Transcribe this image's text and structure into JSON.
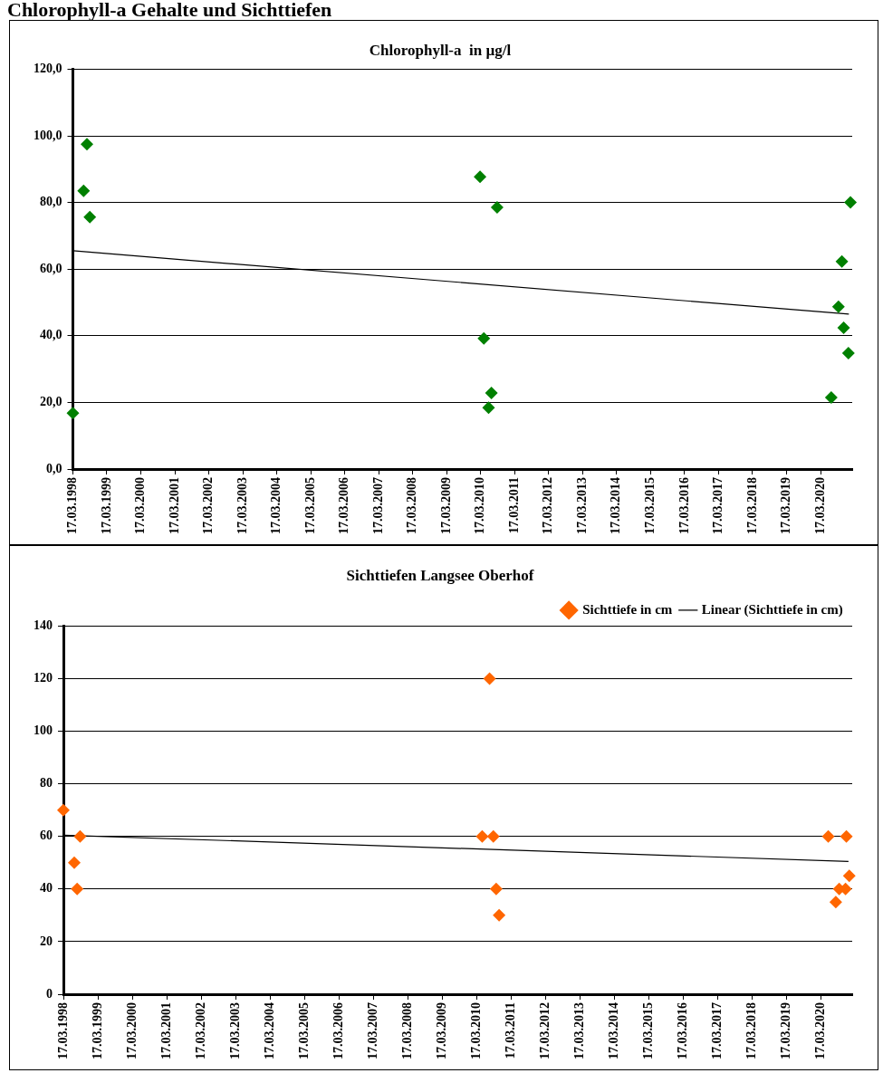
{
  "chart_data": [
    {
      "type": "scatter",
      "title": "Chlorophyll-a  in µg/l",
      "annotations": [
        "Chlorophyll-a Gehalte und Sichttiefen"
      ],
      "series": [
        {
          "type": "scatter",
          "color": "#008000",
          "marker": "diamond",
          "x": [
            "1998-03-17",
            "1998-07-10",
            "1998-08-15",
            "1998-09-15",
            "2010-03-10",
            "2010-04-20",
            "2010-06-10",
            "2010-07-10",
            "2010-09-10",
            "2020-07-10",
            "2020-09-25",
            "2020-11-01",
            "2020-11-20",
            "2021-01-10",
            "2021-02-01"
          ],
          "values": [
            16.8,
            83.5,
            97.5,
            75.6,
            87.7,
            39.2,
            18.4,
            22.8,
            78.5,
            21.5,
            48.7,
            62.3,
            42.4,
            34.8,
            80
          ]
        },
        {
          "type": "line",
          "color": "#000000",
          "marker": "none",
          "x": [
            "1998-03-17",
            "2021-01-15"
          ],
          "values": [
            65.5,
            46.5
          ]
        }
      ],
      "xlim": [
        "1998-03-17",
        "2021-02-20"
      ],
      "xticks": [
        {
          "value": "1998-03-17",
          "label": "17.03.1998"
        },
        {
          "value": "1999-03-17",
          "label": "17.03.1999"
        },
        {
          "value": "2000-03-17",
          "label": "17.03.2000"
        },
        {
          "value": "2001-03-17",
          "label": "17.03.2001"
        },
        {
          "value": "2002-03-17",
          "label": "17.03.2002"
        },
        {
          "value": "2003-03-17",
          "label": "17.03.2003"
        },
        {
          "value": "2004-03-17",
          "label": "17.03.2004"
        },
        {
          "value": "2005-03-17",
          "label": "17.03.2005"
        },
        {
          "value": "2006-03-17",
          "label": "17.03.2006"
        },
        {
          "value": "2007-03-17",
          "label": "17.03.2007"
        },
        {
          "value": "2008-03-17",
          "label": "17.03.2008"
        },
        {
          "value": "2009-03-17",
          "label": "17.03.2009"
        },
        {
          "value": "2010-03-17",
          "label": "17.03.2010"
        },
        {
          "value": "2011-03-17",
          "label": "17.03.2011"
        },
        {
          "value": "2012-03-17",
          "label": "17.03.2012"
        },
        {
          "value": "2013-03-17",
          "label": "17.03.2013"
        },
        {
          "value": "2014-03-17",
          "label": "17.03.2014"
        },
        {
          "value": "2015-03-17",
          "label": "17.03.2015"
        },
        {
          "value": "2016-03-17",
          "label": "17.03.2016"
        },
        {
          "value": "2017-03-17",
          "label": "17.03.2017"
        },
        {
          "value": "2018-03-17",
          "label": "17.03.2018"
        },
        {
          "value": "2019-03-17",
          "label": "17.03.2019"
        },
        {
          "value": "2020-03-17",
          "label": "17.03.2020"
        }
      ],
      "ylim": [
        0,
        120
      ],
      "yticks": [
        {
          "value": 0,
          "label": "0,0"
        },
        {
          "value": 20,
          "label": "20,0"
        },
        {
          "value": 40,
          "label": "40,0"
        },
        {
          "value": 60,
          "label": "60,0"
        },
        {
          "value": 80,
          "label": "80,0"
        },
        {
          "value": 100,
          "label": "100,0"
        },
        {
          "value": 120,
          "label": "120,0"
        }
      ],
      "grid": "y"
    },
    {
      "type": "scatter",
      "title": "Sichttiefen Langsee Oberhof",
      "legend": "top right",
      "series": [
        {
          "type": "scatter",
          "name": "Sichttiefe in cm",
          "color": "#ff6600",
          "marker": "diamond",
          "x": [
            "1998-03-17",
            "1998-07-10",
            "1998-08-10",
            "1998-09-10",
            "2010-05-15",
            "2010-08-01",
            "2010-09-10",
            "2010-10-10",
            "2010-11-10",
            "2020-06-01",
            "2020-08-20",
            "2020-09-25",
            "2020-12-01",
            "2020-12-10",
            "2021-01-10"
          ],
          "values": [
            70,
            50,
            40,
            60,
            60,
            120,
            60,
            40,
            30,
            60,
            35,
            40,
            40,
            60,
            45
          ]
        },
        {
          "type": "line",
          "name": "Linear (Sichttiefe in cm)",
          "color": "#000000",
          "marker": "none",
          "x": [
            "1998-03-17",
            "2021-01-01"
          ],
          "values": [
            60.5,
            50.5
          ]
        }
      ],
      "xlim": [
        "1998-03-17",
        "2021-02-10"
      ],
      "xticks": [
        {
          "value": "1998-03-17",
          "label": "17.03.1998"
        },
        {
          "value": "1999-03-17",
          "label": "17.03.1999"
        },
        {
          "value": "2000-03-17",
          "label": "17.03.2000"
        },
        {
          "value": "2001-03-17",
          "label": "17.03.2001"
        },
        {
          "value": "2002-03-17",
          "label": "17.03.2002"
        },
        {
          "value": "2003-03-17",
          "label": "17.03.2003"
        },
        {
          "value": "2004-03-17",
          "label": "17.03.2004"
        },
        {
          "value": "2005-03-17",
          "label": "17.03.2005"
        },
        {
          "value": "2006-03-17",
          "label": "17.03.2006"
        },
        {
          "value": "2007-03-17",
          "label": "17.03.2007"
        },
        {
          "value": "2008-03-17",
          "label": "17.03.2008"
        },
        {
          "value": "2009-03-17",
          "label": "17.03.2009"
        },
        {
          "value": "2010-03-17",
          "label": "17.03.2010"
        },
        {
          "value": "2011-03-17",
          "label": "17.03.2011"
        },
        {
          "value": "2012-03-17",
          "label": "17.03.2012"
        },
        {
          "value": "2013-03-17",
          "label": "17.03.2013"
        },
        {
          "value": "2014-03-17",
          "label": "17.03.2014"
        },
        {
          "value": "2015-03-17",
          "label": "17.03.2015"
        },
        {
          "value": "2016-03-17",
          "label": "17.03.2016"
        },
        {
          "value": "2017-03-17",
          "label": "17.03.2017"
        },
        {
          "value": "2018-03-17",
          "label": "17.03.2018"
        },
        {
          "value": "2019-03-17",
          "label": "17.03.2019"
        },
        {
          "value": "2020-03-17",
          "label": "17.03.2020"
        }
      ],
      "ylim": [
        0,
        140
      ],
      "yticks": [
        0,
        20,
        40,
        60,
        80,
        100,
        120,
        140
      ],
      "grid": "y"
    }
  ]
}
